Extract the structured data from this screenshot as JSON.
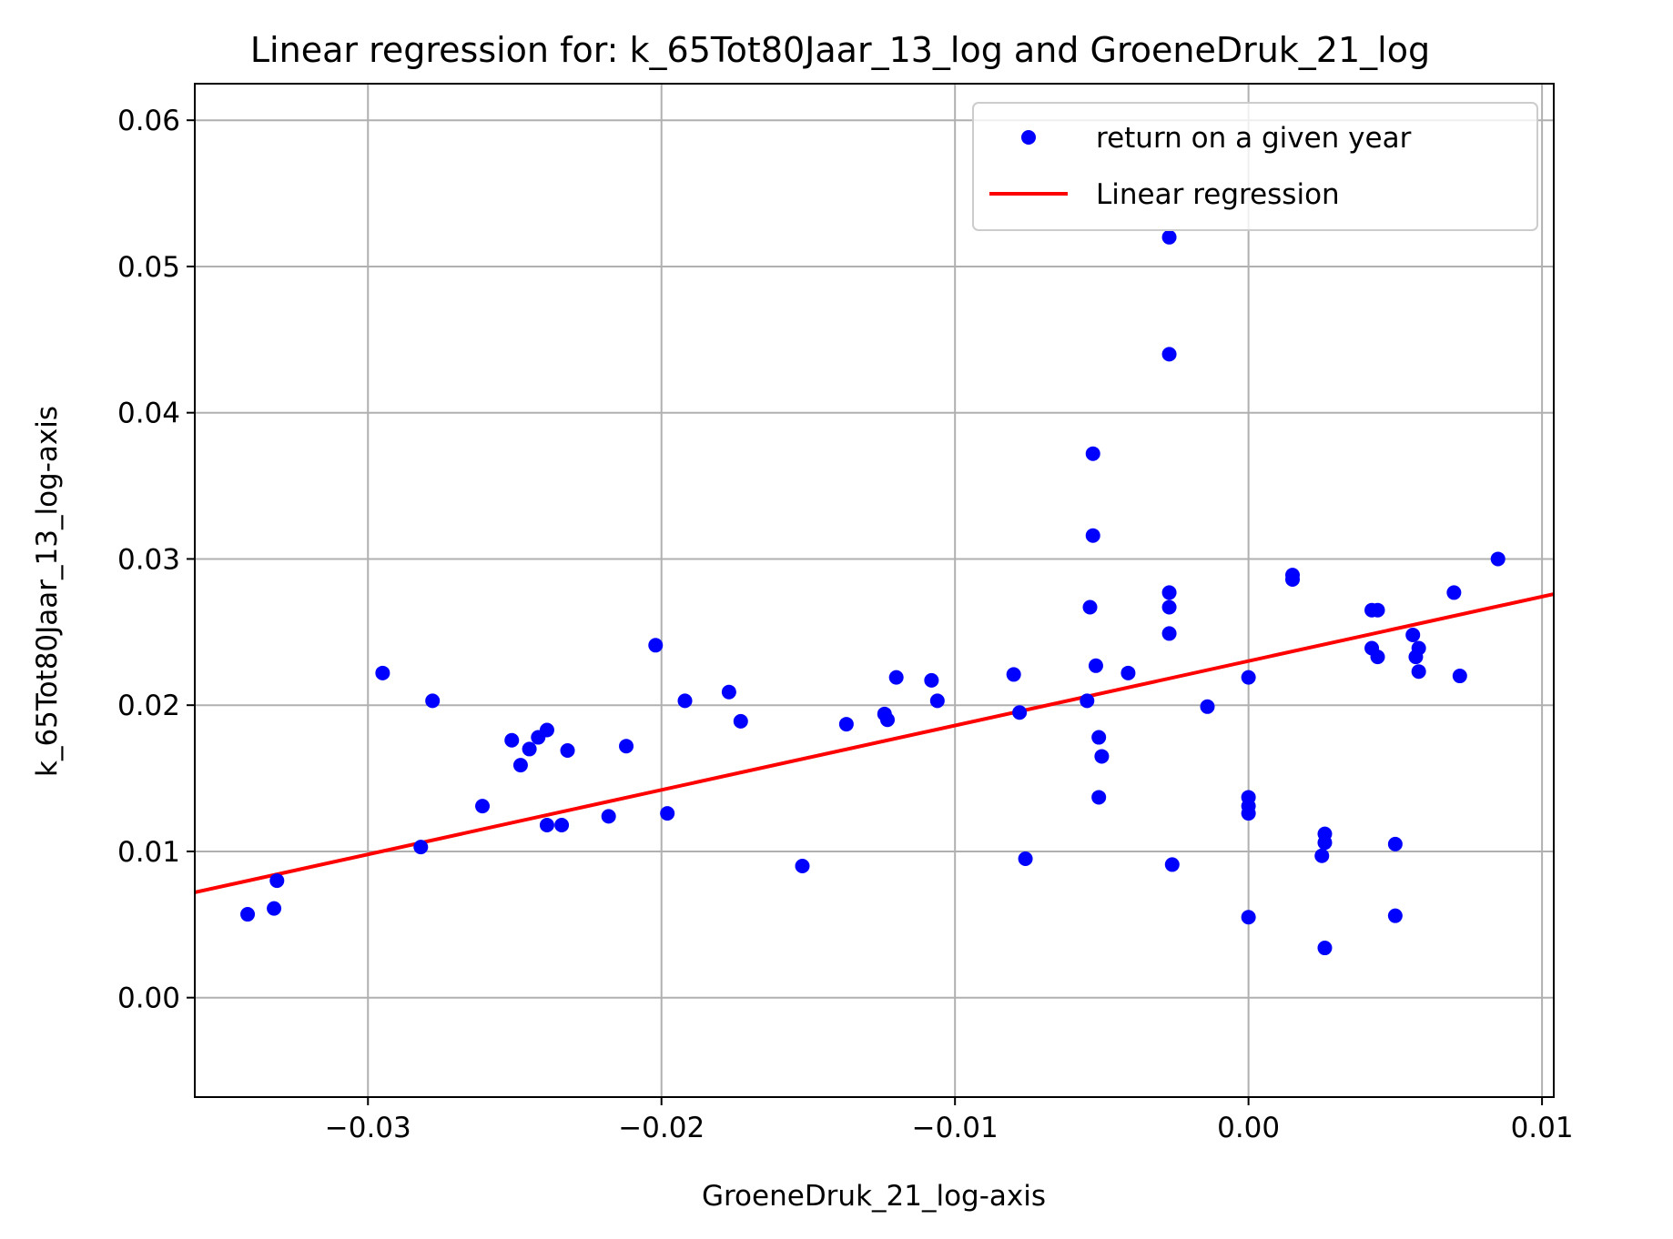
{
  "chart_data": {
    "type": "scatter",
    "title": "Linear regression for: k_65Tot80Jaar_13_log and GroeneDruk_21_log",
    "xlabel": "GroeneDruk_21_log-axis",
    "ylabel": "k_65Tot80Jaar_13_log-axis",
    "xlim": [
      -0.0359,
      0.0104
    ],
    "ylim": [
      -0.0068,
      0.0625
    ],
    "x_ticks": [
      {
        "value": -0.03,
        "label": "−0.03"
      },
      {
        "value": -0.02,
        "label": "−0.02"
      },
      {
        "value": -0.01,
        "label": "−0.01"
      },
      {
        "value": 0.0,
        "label": "0.00"
      },
      {
        "value": 0.01,
        "label": "0.01"
      }
    ],
    "y_ticks": [
      {
        "value": 0.0,
        "label": "0.00"
      },
      {
        "value": 0.01,
        "label": "0.01"
      },
      {
        "value": 0.02,
        "label": "0.02"
      },
      {
        "value": 0.03,
        "label": "0.03"
      },
      {
        "value": 0.04,
        "label": "0.04"
      },
      {
        "value": 0.05,
        "label": "0.05"
      },
      {
        "value": 0.06,
        "label": "0.06"
      }
    ],
    "grid": true,
    "legend_position": "top-right",
    "series": [
      {
        "name": "return on a given year",
        "type": "scatter",
        "color": "#0000ff",
        "points": [
          [
            -0.0341,
            0.0057
          ],
          [
            -0.0332,
            0.0061
          ],
          [
            -0.0331,
            0.008
          ],
          [
            -0.0295,
            0.0222
          ],
          [
            -0.0282,
            0.0103
          ],
          [
            -0.0278,
            0.0203
          ],
          [
            -0.0261,
            0.0131
          ],
          [
            -0.0251,
            0.0176
          ],
          [
            -0.0248,
            0.0159
          ],
          [
            -0.0245,
            0.017
          ],
          [
            -0.0242,
            0.0178
          ],
          [
            -0.0239,
            0.0183
          ],
          [
            -0.0239,
            0.0118
          ],
          [
            -0.0234,
            0.0118
          ],
          [
            -0.0232,
            0.0169
          ],
          [
            -0.0218,
            0.0124
          ],
          [
            -0.0212,
            0.0172
          ],
          [
            -0.0202,
            0.0241
          ],
          [
            -0.0198,
            0.0126
          ],
          [
            -0.0192,
            0.0203
          ],
          [
            -0.0177,
            0.0209
          ],
          [
            -0.0173,
            0.0189
          ],
          [
            -0.0152,
            0.009
          ],
          [
            -0.0137,
            0.0187
          ],
          [
            -0.0124,
            0.0194
          ],
          [
            -0.0123,
            0.019
          ],
          [
            -0.012,
            0.0219
          ],
          [
            -0.0108,
            0.0217
          ],
          [
            -0.0106,
            0.0203
          ],
          [
            -0.008,
            0.0221
          ],
          [
            -0.0078,
            0.0195
          ],
          [
            -0.0076,
            0.0095
          ],
          [
            -0.0055,
            0.0203
          ],
          [
            -0.0054,
            0.0267
          ],
          [
            -0.0053,
            0.0316
          ],
          [
            -0.0053,
            0.0372
          ],
          [
            -0.0052,
            0.0227
          ],
          [
            -0.0051,
            0.0178
          ],
          [
            -0.0051,
            0.0137
          ],
          [
            -0.005,
            0.0165
          ],
          [
            -0.0041,
            0.0222
          ],
          [
            -0.0027,
            0.052
          ],
          [
            -0.0027,
            0.044
          ],
          [
            -0.0027,
            0.0277
          ],
          [
            -0.0027,
            0.0267
          ],
          [
            -0.0027,
            0.0249
          ],
          [
            -0.0026,
            0.0091
          ],
          [
            -0.0014,
            0.0199
          ],
          [
            0.0,
            0.0219
          ],
          [
            0.0,
            0.0137
          ],
          [
            0.0,
            0.0131
          ],
          [
            0.0,
            0.0126
          ],
          [
            0.0,
            0.0055
          ],
          [
            0.0015,
            0.0289
          ],
          [
            0.0015,
            0.0286
          ],
          [
            0.0026,
            0.0112
          ],
          [
            0.0026,
            0.0106
          ],
          [
            0.0025,
            0.0097
          ],
          [
            0.0026,
            0.0034
          ],
          [
            0.0042,
            0.0265
          ],
          [
            0.0044,
            0.0265
          ],
          [
            0.0042,
            0.0239
          ],
          [
            0.0044,
            0.0233
          ],
          [
            0.005,
            0.0105
          ],
          [
            0.005,
            0.0056
          ],
          [
            0.0056,
            0.0248
          ],
          [
            0.0057,
            0.0233
          ],
          [
            0.0058,
            0.0239
          ],
          [
            0.0058,
            0.0223
          ],
          [
            0.007,
            0.0277
          ],
          [
            0.0072,
            0.022
          ],
          [
            0.0085,
            0.03
          ]
        ]
      },
      {
        "name": "Linear regression",
        "type": "line",
        "color": "#ff0000",
        "x": [
          -0.0359,
          0.0104
        ],
        "y": [
          0.0072,
          0.0276
        ]
      }
    ]
  }
}
